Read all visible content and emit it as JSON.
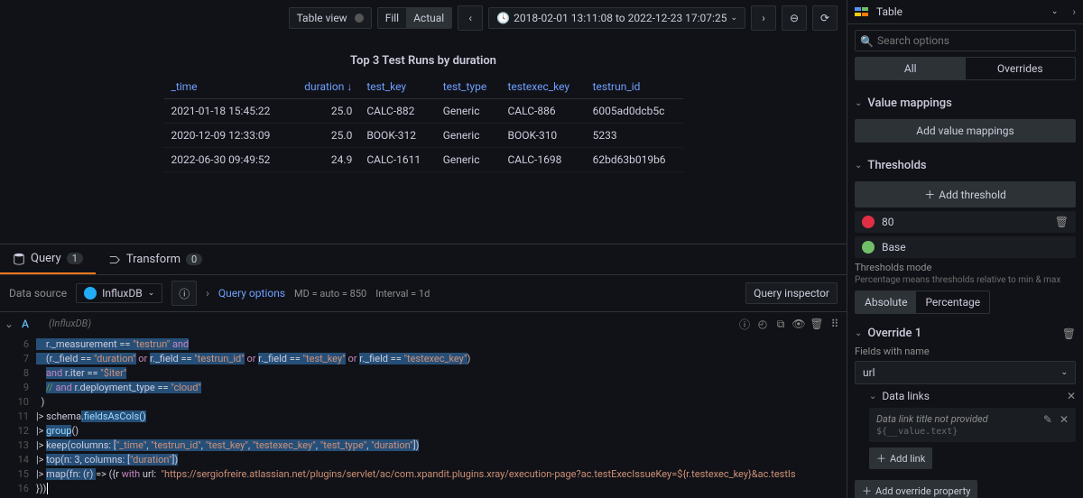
{
  "toolbar": {
    "table_view": "Table view",
    "fill": "Fill",
    "actual": "Actual",
    "time_range": "2018-02-01 13:11:08 to 2022-12-23 17:07:25"
  },
  "panel": {
    "title": "Top 3 Test Runs by duration",
    "columns": {
      "time": "_time",
      "duration": "duration ↓",
      "test_key": "test_key",
      "test_type": "test_type",
      "testexec_key": "testexec_key",
      "testrun_id": "testrun_id"
    },
    "rows": [
      {
        "time": "2021-01-18 15:45:22",
        "duration": "25.0",
        "test_key": "CALC-882",
        "test_type": "Generic",
        "testexec_key": "CALC-886",
        "testrun_id": "6005ad0dcb5c"
      },
      {
        "time": "2020-12-09 12:33:09",
        "duration": "25.0",
        "test_key": "BOOK-312",
        "test_type": "Generic",
        "testexec_key": "BOOK-310",
        "testrun_id": "5233"
      },
      {
        "time": "2022-06-30 09:49:52",
        "duration": "24.9",
        "test_key": "CALC-1611",
        "test_type": "Generic",
        "testexec_key": "CALC-1698",
        "testrun_id": "62bd63b019b6"
      }
    ]
  },
  "tabs": {
    "query": "Query",
    "query_count": "1",
    "transform": "Transform",
    "transform_count": "0"
  },
  "query_bar": {
    "ds_label": "Data source",
    "ds_name": "InfluxDB",
    "options": "Query options",
    "md": "MD = auto = 850",
    "interval": "Interval = 1d",
    "inspector": "Query inspector"
  },
  "editor": {
    "label": "A",
    "hint": "(InfluxDB)",
    "lines": {
      "l6a": "    r._measurement ",
      "l6b": "==",
      "l6c": " \"testrun\"",
      "l6d": " and",
      "l7a": "    (r._field ",
      "l7b": "==",
      "l7c": " \"duration\"",
      "l7d": " or ",
      "l7e": "r._field ",
      "l7f": "==",
      "l7g": " \"testrun_id\"",
      "l7h": " or ",
      "l7i": "r._field ",
      "l7j": "==",
      "l7k": " \"test_key\"",
      "l7l": " or ",
      "l7m": "r._field ",
      "l7n": "==",
      "l7o": " \"testexec_key\"",
      "l7p": ")",
      "l8a": "    ",
      "l8b": "and",
      "l8c": " r.iter ",
      "l8d": "==",
      "l8e": " \"$iter\"",
      "l9a": "    ",
      "l9b": "// ",
      "l9c": "and",
      "l9d": " r.deployment_type ",
      "l9e": "==",
      "l9f": " \"cloud\"",
      "l10": "  )",
      "l11a": "|> schema",
      "l11b": ".fieldsAsCols()",
      "l12a": "|> ",
      "l12b": "group",
      "l12c": "()",
      "l13a": "|> ",
      "l13b": "keep(columns: [",
      "l13c": "\"_time\"",
      "l13d": ", ",
      "l13e": "\"testrun_id\"",
      "l13f": ", ",
      "l13g": "\"test_key\"",
      "l13h": ", ",
      "l13i": "\"testexec_key\"",
      "l13j": ", ",
      "l13k": "\"test_type\"",
      "l13l": ", ",
      "l13m": "\"duration\"",
      "l13n": "])",
      "l14a": "|> ",
      "l14b": "top(n: ",
      "l14c": "3",
      "l14d": ", columns: [",
      "l14e": "\"duration\"",
      "l14f": "])",
      "l15a": "|> ",
      "l15b": "map(fn: (r) ",
      "l15c": "=>",
      "l15d": " ({r ",
      "l15e": "with",
      "l15f": " url:  ",
      "l15g": "\"https://sergiofreire.atlassian.net/plugins/servlet/ac/com.xpandit.plugins.xray/execution-page?ac.testExecIssueKey=${r.testexec_key}&ac.testIs",
      "l16": "}))"
    },
    "line_nums": [
      "6",
      "7",
      "8",
      "9",
      "10",
      "11",
      "12",
      "13",
      "14",
      "15",
      "16"
    ]
  },
  "sidebar": {
    "viz_label": "Table",
    "search_placeholder": "Search options",
    "tab_all": "All",
    "tab_overrides": "Overrides",
    "value_mappings": "Value mappings",
    "add_value_mappings": "Add value mappings",
    "thresholds": "Thresholds",
    "add_threshold": "Add threshold",
    "thresh_80": "80",
    "thresh_base": "Base",
    "thresh_80_color": "#e02f44",
    "thresh_base_color": "#73bf69",
    "thresh_mode_label": "Thresholds mode",
    "thresh_mode_desc": "Percentage means thresholds relative to min & max",
    "absolute": "Absolute",
    "percentage": "Percentage",
    "override1": "Override 1",
    "fields_with_name": "Fields with name",
    "field_url": "url",
    "data_links": "Data links",
    "link_title": "Data link title not provided",
    "link_url": "${__value.text}",
    "add_link": "Add link",
    "add_override_prop": "Add override property"
  }
}
